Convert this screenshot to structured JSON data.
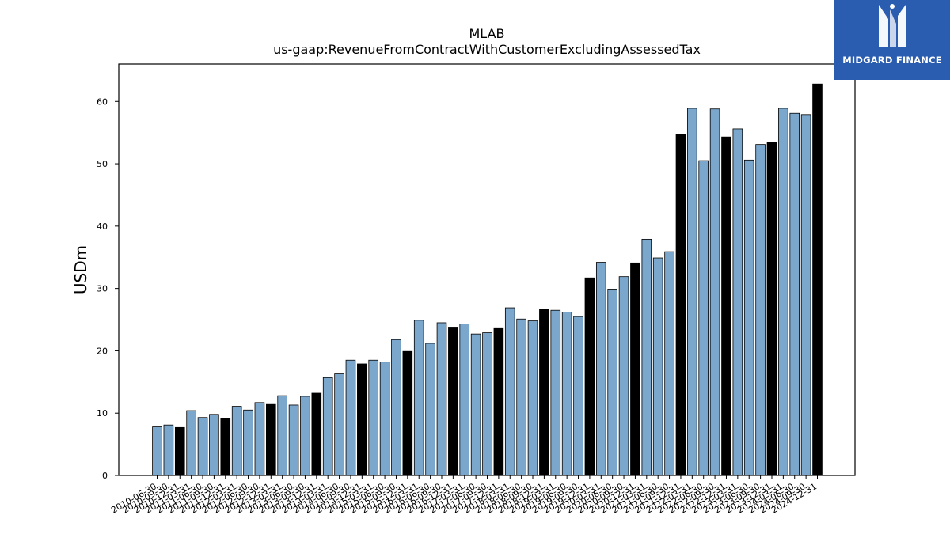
{
  "brand": {
    "name": "MIDGARD FINANCE",
    "color": "#2a5caf",
    "icon": "midgard-logo-icon"
  },
  "chart_data": {
    "type": "bar",
    "title": "MLAB",
    "subtitle": "us-gaap:RevenueFromContractWithCustomerExcludingAssessedTax",
    "xlabel": "",
    "ylabel": "USDm",
    "ylim": [
      0,
      66
    ],
    "yticks": [
      0,
      10,
      20,
      30,
      40,
      50,
      60
    ],
    "grid": false,
    "colors": {
      "quarter": "#7ba7cc",
      "fiscal_year_end": "#000000"
    },
    "categories": [
      "2010-06-30",
      "2010-09-30",
      "2010-12-31",
      "2011-03-31",
      "2011-06-30",
      "2011-09-30",
      "2011-12-31",
      "2012-03-31",
      "2012-06-30",
      "2012-09-30",
      "2012-12-31",
      "2013-03-31",
      "2013-06-30",
      "2013-09-30",
      "2013-12-31",
      "2014-03-31",
      "2014-06-30",
      "2014-09-30",
      "2014-12-31",
      "2015-03-31",
      "2015-06-30",
      "2015-09-30",
      "2015-12-31",
      "2016-03-31",
      "2016-06-30",
      "2016-09-30",
      "2016-12-31",
      "2017-03-31",
      "2017-06-30",
      "2017-09-30",
      "2017-12-31",
      "2018-03-31",
      "2018-06-30",
      "2018-09-30",
      "2018-12-31",
      "2019-03-31",
      "2019-06-30",
      "2019-09-30",
      "2019-12-31",
      "2020-03-31",
      "2020-06-30",
      "2020-09-30",
      "2020-12-31",
      "2021-03-31",
      "2021-06-30",
      "2021-09-30",
      "2021-12-31",
      "2022-03-31",
      "2022-06-30",
      "2022-09-30",
      "2022-12-31",
      "2023-03-31",
      "2023-06-30",
      "2023-09-30",
      "2023-12-31",
      "2024-03-31",
      "2024-06-30",
      "2024-09-30",
      "2024-12-31"
    ],
    "values": [
      7.8,
      8.1,
      7.7,
      10.4,
      9.3,
      9.8,
      9.2,
      11.1,
      10.5,
      11.7,
      11.4,
      12.8,
      11.3,
      12.7,
      13.2,
      15.7,
      16.3,
      18.5,
      17.9,
      18.5,
      18.2,
      21.8,
      19.9,
      24.9,
      21.2,
      24.5,
      23.8,
      24.3,
      22.7,
      22.9,
      23.7,
      26.9,
      25.1,
      24.8,
      26.7,
      26.5,
      26.2,
      25.5,
      31.7,
      34.2,
      29.9,
      31.9,
      34.1,
      37.9,
      34.9,
      35.9,
      54.7,
      58.9,
      50.5,
      58.8,
      54.3,
      55.6,
      50.6,
      53.1,
      53.4,
      58.9,
      58.1,
      57.9,
      62.8
    ],
    "fiscal_year_end": [
      false,
      false,
      true,
      false,
      false,
      false,
      true,
      false,
      false,
      false,
      true,
      false,
      false,
      false,
      true,
      false,
      false,
      false,
      true,
      false,
      false,
      false,
      true,
      false,
      false,
      false,
      true,
      false,
      false,
      false,
      true,
      false,
      false,
      false,
      true,
      false,
      false,
      false,
      true,
      false,
      false,
      false,
      true,
      false,
      false,
      false,
      true,
      false,
      false,
      false,
      true,
      false,
      false,
      false,
      true,
      false,
      false,
      false,
      true
    ]
  }
}
